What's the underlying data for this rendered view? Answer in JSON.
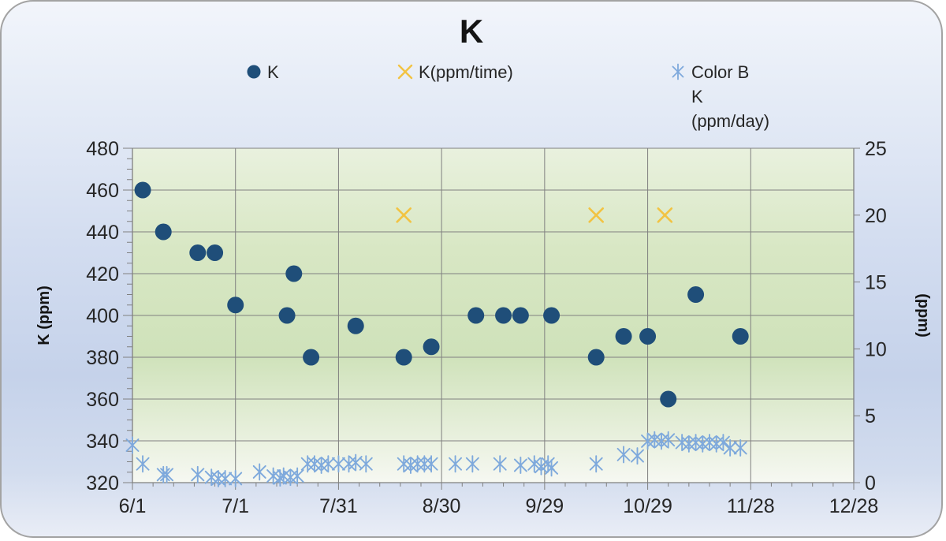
{
  "chart_data": {
    "type": "scatter",
    "title": "K",
    "x_axis": {
      "tick_labels": [
        "6/1",
        "7/1",
        "7/31",
        "8/30",
        "9/29",
        "10/29",
        "11/28",
        "12/28"
      ],
      "major_step_days": 30,
      "minor_step_days": 6,
      "range_days": [
        0,
        210
      ]
    },
    "y_left": {
      "label": "K (ppm)",
      "min": 320,
      "max": 480,
      "step": 20,
      "minor_step": 5,
      "tick_labels": [
        "320",
        "340",
        "360",
        "380",
        "400",
        "420",
        "440",
        "460",
        "480"
      ]
    },
    "y_right": {
      "label": "(ppm)",
      "min": 0,
      "max": 25,
      "step": 5,
      "tick_labels": [
        "0",
        "5",
        "10",
        "15",
        "20",
        "25"
      ]
    },
    "plot_background": {
      "stops": [
        [
          "0%",
          "#e9f1de"
        ],
        [
          "30%",
          "#d8e7c4"
        ],
        [
          "62%",
          "#cfe2ba"
        ],
        [
          "88%",
          "#eaf1e0"
        ],
        [
          "100%",
          "#f6f8f2"
        ]
      ]
    },
    "grid_color": "#808080",
    "text_color": "#262626",
    "series": [
      {
        "name": "K",
        "legend_label": "K",
        "axis": "left",
        "marker": "circle",
        "color": "#1F4E79",
        "points": [
          [
            "6/4",
            460
          ],
          [
            "6/10",
            440
          ],
          [
            "6/20",
            430
          ],
          [
            "6/25",
            430
          ],
          [
            "7/1",
            405
          ],
          [
            "7/16",
            400
          ],
          [
            "7/18",
            420
          ],
          [
            "7/23",
            380
          ],
          [
            "8/5",
            395
          ],
          [
            "8/19",
            380
          ],
          [
            "8/27",
            385
          ],
          [
            "9/9",
            400
          ],
          [
            "9/17",
            400
          ],
          [
            "9/22",
            400
          ],
          [
            "10/1",
            400
          ],
          [
            "10/14",
            380
          ],
          [
            "10/22",
            390
          ],
          [
            "10/29",
            390
          ],
          [
            "11/4",
            360
          ],
          [
            "11/12",
            410
          ],
          [
            "11/25",
            390
          ]
        ]
      },
      {
        "name": "K(ppm/time)",
        "legend_label": "K(ppm/time)",
        "axis": "right",
        "marker": "x",
        "color": "#F2C342",
        "points": [
          [
            "8/19",
            20
          ],
          [
            "10/14",
            20
          ],
          [
            "11/3",
            20
          ]
        ]
      },
      {
        "name": "Color B K (ppm/day)",
        "legend_label": "Color B\nK\n(ppm/day)",
        "axis": "right",
        "marker": "asterisk",
        "color": "#7EA9DC",
        "points": [
          [
            "6/1",
            2.8
          ],
          [
            "6/4",
            1.4
          ],
          [
            "6/10",
            0.6
          ],
          [
            "6/11",
            0.6
          ],
          [
            "6/20",
            0.6
          ],
          [
            "6/24",
            0.4
          ],
          [
            "6/26",
            0.3
          ],
          [
            "6/28",
            0.3
          ],
          [
            "7/1",
            0.3
          ],
          [
            "7/8",
            0.8
          ],
          [
            "7/12",
            0.5
          ],
          [
            "7/14",
            0.35
          ],
          [
            "7/15",
            0.5
          ],
          [
            "7/17",
            0.4
          ],
          [
            "7/19",
            0.5
          ],
          [
            "7/22",
            1.4
          ],
          [
            "7/24",
            1.4
          ],
          [
            "7/26",
            1.3
          ],
          [
            "7/28",
            1.4
          ],
          [
            "7/31",
            1.4
          ],
          [
            "8/3",
            1.4
          ],
          [
            "8/5",
            1.5
          ],
          [
            "8/8",
            1.4
          ],
          [
            "8/19",
            1.4
          ],
          [
            "8/21",
            1.3
          ],
          [
            "8/23",
            1.4
          ],
          [
            "8/25",
            1.4
          ],
          [
            "8/27",
            1.4
          ],
          [
            "9/3",
            1.4
          ],
          [
            "9/8",
            1.4
          ],
          [
            "9/16",
            1.4
          ],
          [
            "9/22",
            1.3
          ],
          [
            "9/26",
            1.4
          ],
          [
            "9/28",
            1.2
          ],
          [
            "9/30",
            1.4
          ],
          [
            "10/1",
            1.1
          ],
          [
            "10/14",
            1.4
          ],
          [
            "10/22",
            2.1
          ],
          [
            "10/26",
            2.0
          ],
          [
            "10/29",
            3.1
          ],
          [
            "10/31",
            3.2
          ],
          [
            "11/2",
            3.1
          ],
          [
            "11/4",
            3.2
          ],
          [
            "11/8",
            3.0
          ],
          [
            "11/10",
            2.9
          ],
          [
            "11/12",
            3.0
          ],
          [
            "11/14",
            2.9
          ],
          [
            "11/16",
            3.0
          ],
          [
            "11/18",
            2.9
          ],
          [
            "11/20",
            3.0
          ],
          [
            "11/22",
            2.6
          ],
          [
            "11/25",
            2.6
          ]
        ]
      }
    ]
  }
}
